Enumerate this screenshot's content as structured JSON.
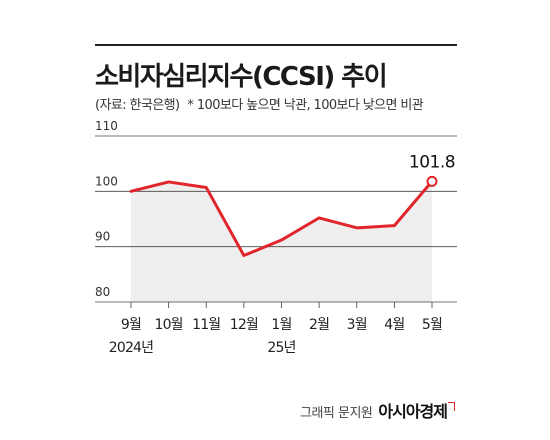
{
  "title": "소비자심리지수(CCSI) 추이",
  "source": "(자료: 한국은행)",
  "note": "* 100보다 높으면 낙관, 100보다 낮으면 비관",
  "credit": "그래픽 문지원",
  "brand": "아시아경제",
  "colors": {
    "line": "#e0262b",
    "area": "#efefef",
    "grid": "#444444"
  },
  "chart_data": {
    "type": "line",
    "categories": [
      "9월",
      "10월",
      "11월",
      "12월",
      "1월",
      "2월",
      "3월",
      "4월",
      "5월"
    ],
    "year_labels": [
      "2024년",
      "",
      "",
      "",
      "25년",
      "",
      "",
      "",
      ""
    ],
    "values": [
      100.0,
      101.7,
      100.7,
      88.4,
      91.2,
      95.2,
      93.4,
      93.8,
      101.8
    ],
    "yticks": [
      80,
      90,
      100,
      110
    ],
    "ylim": [
      80,
      110
    ],
    "highlight_label": "101.8",
    "grid": true
  }
}
